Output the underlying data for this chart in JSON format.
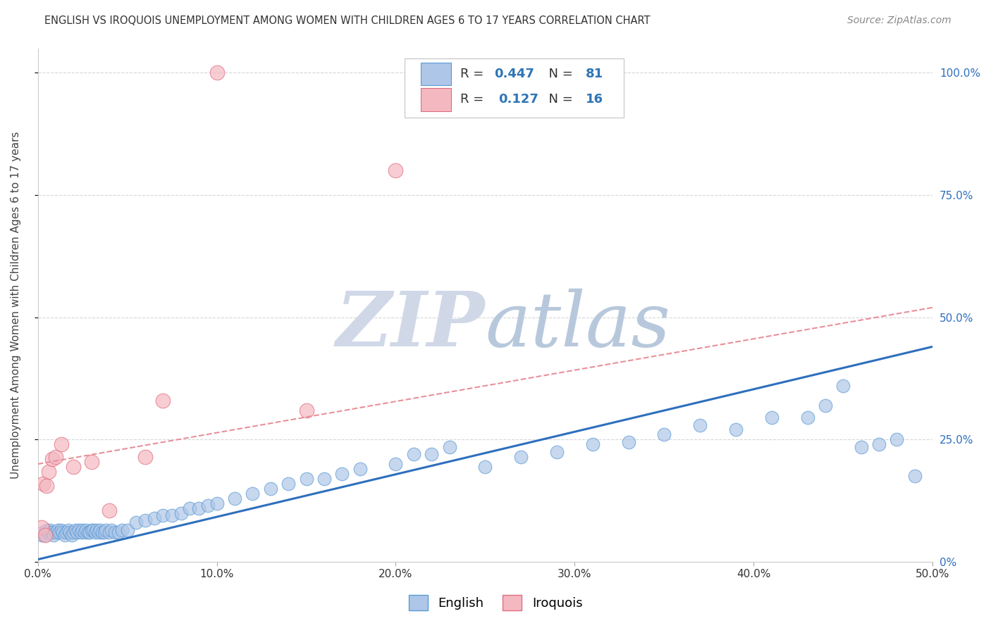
{
  "title": "ENGLISH VS IROQUOIS UNEMPLOYMENT AMONG WOMEN WITH CHILDREN AGES 6 TO 17 YEARS CORRELATION CHART",
  "source": "Source: ZipAtlas.com",
  "ylabel": "Unemployment Among Women with Children Ages 6 to 17 years",
  "x_min": 0.0,
  "x_max": 0.5,
  "y_min": 0.0,
  "y_max": 1.05,
  "xtick_labels": [
    "0.0%",
    "10.0%",
    "20.0%",
    "30.0%",
    "40.0%",
    "50.0%"
  ],
  "xtick_values": [
    0.0,
    0.1,
    0.2,
    0.3,
    0.4,
    0.5
  ],
  "ytick_labels": [
    "100.0%",
    "75.0%",
    "50.0%",
    "25.0%",
    "0%"
  ],
  "ytick_values": [
    1.0,
    0.75,
    0.5,
    0.25,
    0.0
  ],
  "english_color": "#aec6e8",
  "english_edge_color": "#5b9bd5",
  "iroquois_color": "#f4b8c1",
  "iroquois_edge_color": "#e06c7e",
  "blue_line_color": "#2e6fbd",
  "pink_line_color": "#e8909a",
  "watermark_zip_color": "#d0d8e8",
  "watermark_atlas_color": "#b8c8dc",
  "english_R": 0.447,
  "english_N": 81,
  "iroquois_R": 0.127,
  "iroquois_N": 16,
  "blue_line_x0": 0.0,
  "blue_line_y0": 0.005,
  "blue_line_x1": 0.5,
  "blue_line_y1": 0.44,
  "pink_line_x0": 0.0,
  "pink_line_y0": 0.2,
  "pink_line_x1": 0.5,
  "pink_line_y1": 0.52,
  "english_x": [
    0.002,
    0.003,
    0.004,
    0.005,
    0.006,
    0.007,
    0.008,
    0.009,
    0.01,
    0.011,
    0.012,
    0.013,
    0.014,
    0.015,
    0.016,
    0.017,
    0.018,
    0.019,
    0.02,
    0.021,
    0.022,
    0.023,
    0.024,
    0.025,
    0.026,
    0.027,
    0.028,
    0.029,
    0.03,
    0.031,
    0.032,
    0.033,
    0.034,
    0.035,
    0.036,
    0.037,
    0.038,
    0.04,
    0.041,
    0.043,
    0.045,
    0.047,
    0.05,
    0.055,
    0.06,
    0.065,
    0.07,
    0.075,
    0.08,
    0.085,
    0.09,
    0.095,
    0.1,
    0.11,
    0.12,
    0.13,
    0.14,
    0.15,
    0.16,
    0.17,
    0.18,
    0.2,
    0.21,
    0.22,
    0.23,
    0.25,
    0.27,
    0.29,
    0.31,
    0.33,
    0.35,
    0.37,
    0.39,
    0.41,
    0.43,
    0.44,
    0.45,
    0.46,
    0.47,
    0.48,
    0.49
  ],
  "english_y": [
    0.055,
    0.06,
    0.055,
    0.065,
    0.06,
    0.065,
    0.06,
    0.055,
    0.06,
    0.065,
    0.06,
    0.065,
    0.06,
    0.055,
    0.06,
    0.065,
    0.06,
    0.055,
    0.06,
    0.065,
    0.06,
    0.065,
    0.06,
    0.065,
    0.06,
    0.065,
    0.06,
    0.06,
    0.065,
    0.065,
    0.06,
    0.065,
    0.06,
    0.065,
    0.06,
    0.06,
    0.065,
    0.06,
    0.065,
    0.06,
    0.06,
    0.065,
    0.065,
    0.08,
    0.085,
    0.09,
    0.095,
    0.095,
    0.1,
    0.11,
    0.11,
    0.115,
    0.12,
    0.13,
    0.14,
    0.15,
    0.16,
    0.17,
    0.17,
    0.18,
    0.19,
    0.2,
    0.22,
    0.22,
    0.235,
    0.195,
    0.215,
    0.225,
    0.24,
    0.245,
    0.26,
    0.28,
    0.27,
    0.295,
    0.295,
    0.32,
    0.36,
    0.235,
    0.24,
    0.25,
    0.175
  ],
  "iroquois_x": [
    0.002,
    0.003,
    0.004,
    0.005,
    0.006,
    0.008,
    0.01,
    0.013,
    0.02,
    0.03,
    0.04,
    0.06,
    0.07,
    0.1,
    0.15,
    0.2
  ],
  "iroquois_y": [
    0.07,
    0.16,
    0.055,
    0.155,
    0.185,
    0.21,
    0.215,
    0.24,
    0.195,
    0.205,
    0.105,
    0.215,
    0.33,
    1.0,
    0.31,
    0.8
  ]
}
